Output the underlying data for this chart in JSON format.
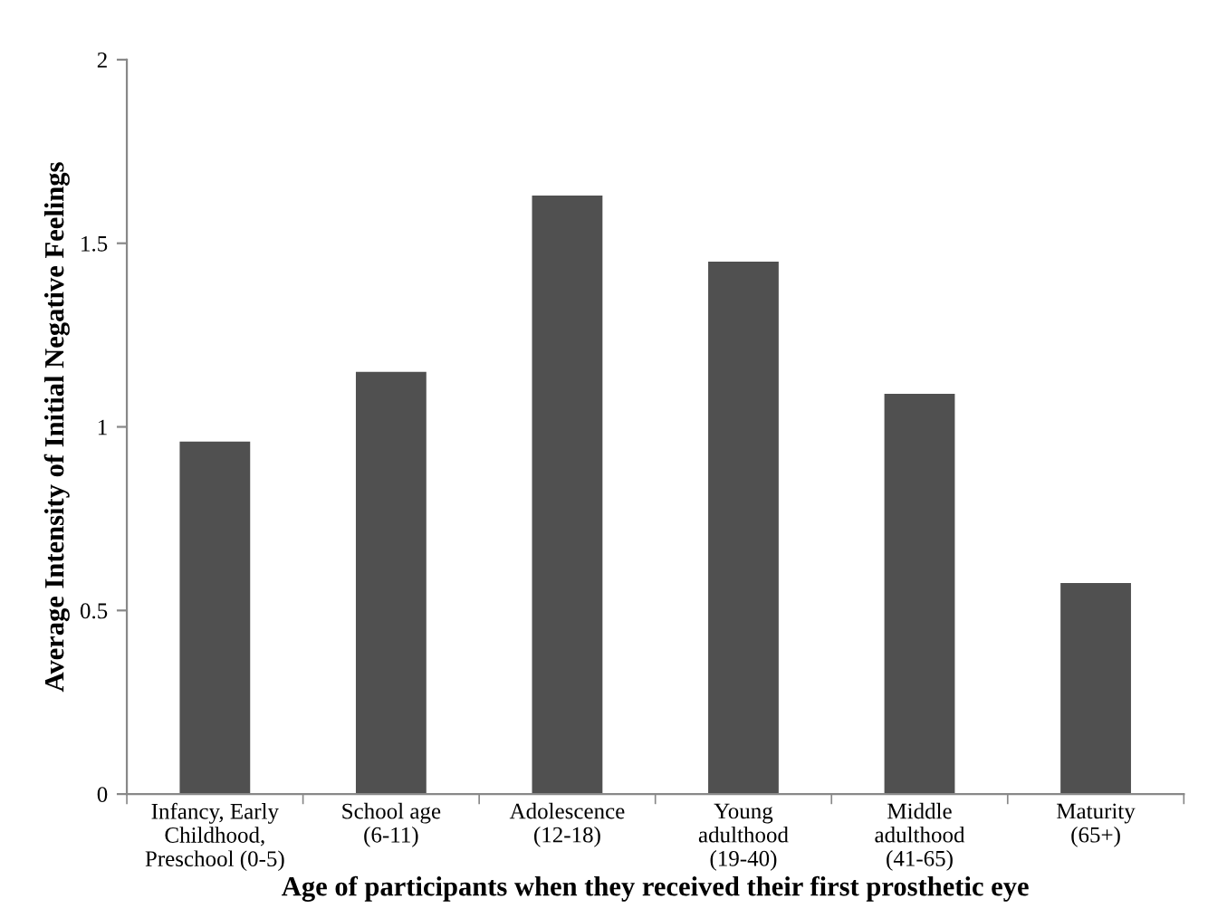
{
  "chart_data": {
    "type": "bar",
    "xlabel": "Age of participants when they received their first prosthetic eye",
    "ylabel": "Average Intensity of Initial Negative Feelings",
    "categories": [
      "Infancy, Early\nChildhood,\nPreschool (0-5)",
      "School age\n(6-11)",
      "Adolescence\n(12-18)",
      "Young\nadulthood\n(19-40)",
      "Middle\nadulthood\n(41-65)",
      "Maturity\n(65+)"
    ],
    "values": [
      0.96,
      1.15,
      1.63,
      1.45,
      1.09,
      0.575
    ],
    "color": "#505050",
    "ylim": [
      0,
      2
    ],
    "yticks": [
      0,
      {
        "value": 0.5,
        "label": "0.5"
      },
      1,
      {
        "value": 1.5,
        "label": "1.5"
      },
      2
    ],
    "grid": false
  }
}
